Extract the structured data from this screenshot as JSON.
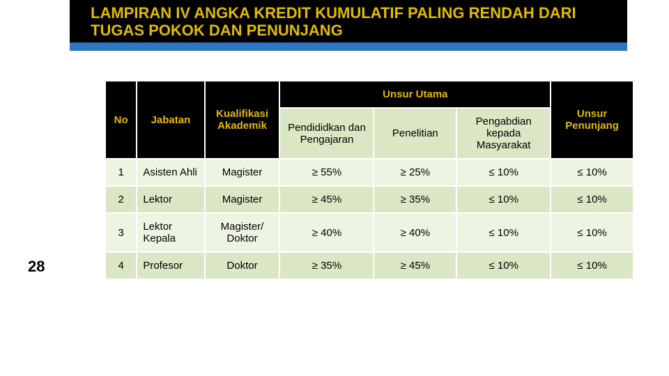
{
  "title": "LAMPIRAN IV ANGKA KREDIT KUMULATIF PALING RENDAH DARI TUGAS POKOK DAN PENUNJANG",
  "page_number": "28",
  "colors": {
    "title_text": "#e2bb00",
    "title_bg": "#000000",
    "underbar": "#2e75c6",
    "header_bg": "#000000",
    "header_text": "#e2bb00",
    "row_a": "#dbe6c4",
    "row_b": "#eef4e2",
    "cell_text": "#000000",
    "border": "#ffffff"
  },
  "fonts": {
    "title_size": 22,
    "cell_size": 15
  },
  "table": {
    "columns": {
      "no": "No",
      "jabatan": "Jabatan",
      "kualifikasi": "Kualifikasi Akademik",
      "unsur_utama": "Unsur Utama",
      "unsur_penunjang": "Unsur Penunjang"
    },
    "sub_columns": {
      "pendidikan": "Pendididkan dan Pengajaran",
      "penelitian": "Penelitian",
      "pengabdian": "Pengabdian kepada Masyarakat"
    },
    "rows": [
      {
        "no": "1",
        "jabatan": "Asisten Ahli",
        "kualifikasi": "Magister",
        "pendidikan": "≥ 55%",
        "penelitian": "≥ 25%",
        "pengabdian": "≤ 10%",
        "penunjang": "≤ 10%"
      },
      {
        "no": "2",
        "jabatan": "Lektor",
        "kualifikasi": "Magister",
        "pendidikan": "≥ 45%",
        "penelitian": "≥ 35%",
        "pengabdian": "≤ 10%",
        "penunjang": "≤ 10%"
      },
      {
        "no": "3",
        "jabatan": "Lektor Kepala",
        "kualifikasi": "Magister/ Doktor",
        "pendidikan": "≥ 40%",
        "penelitian": "≥ 40%",
        "pengabdian": "≤ 10%",
        "penunjang": "≤ 10%"
      },
      {
        "no": "4",
        "jabatan": "Profesor",
        "kualifikasi": "Doktor",
        "pendidikan": "≥ 35%",
        "penelitian": "≥ 45%",
        "pengabdian": "≤ 10%",
        "penunjang": "≤ 10%"
      }
    ]
  }
}
